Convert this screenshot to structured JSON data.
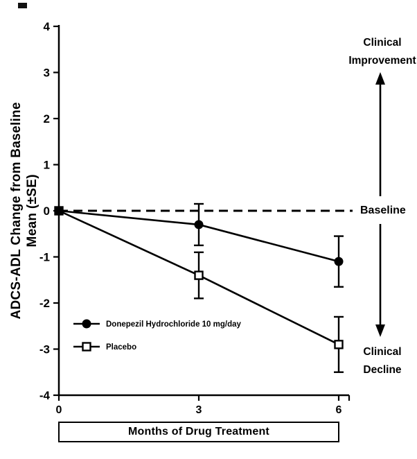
{
  "figure": {
    "background": "#ffffff",
    "ink_color": "#000000"
  },
  "chart_data": {
    "type": "line",
    "title": "",
    "xlabel": "Months of Drug Treatment",
    "ylabel": "ADCS-ADL Change from Baseline\nMean (±SE)",
    "xlim": [
      0,
      6.3
    ],
    "ylim": [
      -4,
      4
    ],
    "xticks": [
      0,
      3,
      6
    ],
    "yticks": [
      4,
      3,
      2,
      1,
      0,
      -1,
      -2,
      -3,
      -4
    ],
    "grid": false,
    "legend_position": "lower-left-inside",
    "x": [
      0,
      3,
      6
    ],
    "series": [
      {
        "name": "Donepezil Hydrochloride 10 mg/day",
        "marker": "filled-circle",
        "values": [
          0,
          -0.3,
          -1.1
        ],
        "se": [
          0,
          0.45,
          0.55
        ]
      },
      {
        "name": "Placebo",
        "marker": "open-square",
        "values": [
          0,
          -1.4,
          -2.9
        ],
        "se": [
          0,
          0.5,
          0.6
        ]
      }
    ],
    "baseline": {
      "value": 0,
      "style": "dashed"
    }
  },
  "annotations": {
    "clinical_improvement": "Clinical\nImprovement",
    "baseline_label": "Baseline",
    "clinical_decline": "Clinical\nDecline"
  }
}
